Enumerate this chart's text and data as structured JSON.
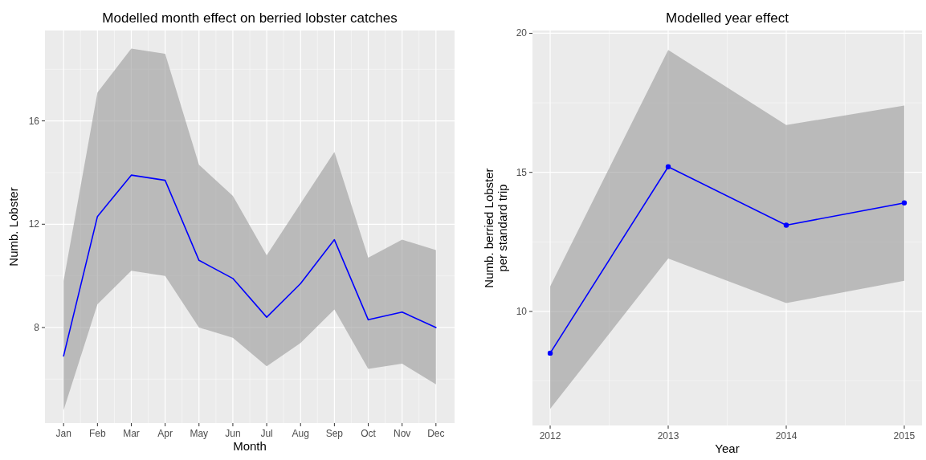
{
  "chart_data": [
    {
      "type": "line",
      "title": "Modelled month effect on berried lobster catches",
      "xlabel": "Month",
      "ylabel": "Numb. Lobster",
      "categories": [
        "Jan",
        "Feb",
        "Mar",
        "Apr",
        "May",
        "Jun",
        "Jul",
        "Aug",
        "Sep",
        "Oct",
        "Nov",
        "Dec"
      ],
      "series": [
        {
          "color": "#0000ff",
          "values": [
            6.9,
            12.3,
            13.9,
            13.7,
            10.6,
            9.9,
            8.4,
            9.7,
            11.4,
            8.3,
            8.6,
            8.0
          ],
          "lower": [
            4.8,
            8.9,
            10.2,
            10.0,
            8.0,
            7.6,
            6.5,
            7.4,
            8.7,
            6.4,
            6.6,
            5.8
          ],
          "upper": [
            9.8,
            17.1,
            18.8,
            18.6,
            14.3,
            13.1,
            10.8,
            12.8,
            14.8,
            10.7,
            11.4,
            11.0
          ]
        }
      ],
      "ylim": [
        4.3,
        19.5
      ],
      "yticks": [
        8,
        12,
        16
      ],
      "grid": true,
      "marker": "none"
    },
    {
      "type": "line",
      "title": "Modelled year effect",
      "xlabel": "Year",
      "ylabel": "Numb. berried Lobster\nper standard trip",
      "x": [
        2012,
        2013,
        2014,
        2015
      ],
      "series": [
        {
          "color": "#0000ff",
          "values": [
            8.5,
            15.2,
            13.1,
            13.9
          ],
          "lower": [
            6.5,
            11.9,
            10.3,
            11.1
          ],
          "upper": [
            10.9,
            19.4,
            16.7,
            17.4
          ]
        }
      ],
      "xlim": [
        2011.85,
        2015.15
      ],
      "xticks": [
        2012,
        2013,
        2014,
        2015
      ],
      "ylim": [
        5.9,
        20.1
      ],
      "yticks": [
        10,
        15,
        20
      ],
      "grid": true,
      "marker": "circle"
    }
  ]
}
